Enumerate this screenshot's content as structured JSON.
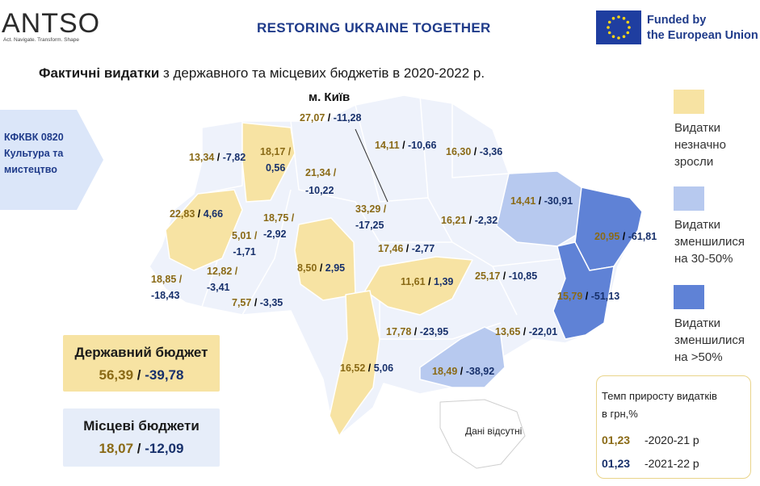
{
  "header": {
    "logo_text": "ANTSO",
    "logo_tagline": "Act. Navigate. Transform. Shape",
    "title": "RESTORING UKRAINE TOGETHER",
    "eu_line1": "Funded by",
    "eu_line2": "the European Union"
  },
  "title": {
    "bold": "Фактичні видатки",
    "rest": " з державного та місцевих бюджетів в 2020-2022 р."
  },
  "kfk": {
    "line1": "КФКВК 0820",
    "line2": "Культура та",
    "line3": "мистецтво"
  },
  "kyiv_label": "м. Київ",
  "colors": {
    "increase": "#f7e3a3",
    "decrease_30_50": "#b7c9ef",
    "decrease_50": "#5f82d6",
    "no_data": "#ffffff",
    "other": "#eef2fb",
    "text_2020_21": "#8a6a16",
    "text_2021_22": "#17306b"
  },
  "legend": [
    {
      "key": "increase",
      "lines": [
        "Видатки",
        "незначно",
        "зросли"
      ]
    },
    {
      "key": "decrease_30_50",
      "lines": [
        "Видатки",
        "зменшилися",
        "на 30-50%"
      ]
    },
    {
      "key": "decrease_50",
      "lines": [
        "Видатки",
        "зменшилися",
        "на >50%"
      ]
    }
  ],
  "state_budget": {
    "title": "Державний бюджет",
    "v2021": "56,39",
    "v2122": "-39,78"
  },
  "local_budget": {
    "title": "Місцеві бюджети",
    "v2021": "18,07",
    "v2122": "-12,09"
  },
  "rate_box": {
    "title_l1": "Темп приросту видатків",
    "title_l2": "в грн,%",
    "sample": "01,23",
    "row1": "-2020-21 р",
    "row2": "-2021-22 р"
  },
  "no_data_label": "Дані відсутні",
  "regions": [
    {
      "id": "volyn",
      "a": "13,34",
      "b": "-7,82",
      "cat": "other"
    },
    {
      "id": "rivne",
      "a": "18,17",
      "b": "0,56",
      "cat": "increase"
    },
    {
      "id": "zhytomyr",
      "a": "21,34",
      "b": "-10,22",
      "cat": "other"
    },
    {
      "id": "kyiv_city",
      "a": "27,07",
      "b": "-11,28",
      "cat": "other"
    },
    {
      "id": "kyiv_obl",
      "a": "33,29",
      "b": "-17,25",
      "cat": "other"
    },
    {
      "id": "chernihiv",
      "a": "14,11",
      "b": "-10,66",
      "cat": "other"
    },
    {
      "id": "sumy",
      "a": "16,30",
      "b": "-3,36",
      "cat": "other"
    },
    {
      "id": "kharkiv",
      "a": "14,41",
      "b": "-30,91",
      "cat": "decrease_30_50"
    },
    {
      "id": "luhansk",
      "a": "20,95",
      "b": "-61,81",
      "cat": "decrease_50"
    },
    {
      "id": "lviv",
      "a": "22,83",
      "b": "4,66",
      "cat": "increase"
    },
    {
      "id": "ternopil",
      "a": "18,75",
      "b": "-2,92",
      "cat": "other"
    },
    {
      "id": "khmelnytskyi",
      "a": "5,01",
      "b": "-1,71",
      "cat": "other"
    },
    {
      "id": "vinnytsia",
      "a": "8,50",
      "b": "2,95",
      "cat": "increase"
    },
    {
      "id": "cherkasy",
      "a": "17,46",
      "b": "-2,77",
      "cat": "other"
    },
    {
      "id": "poltava",
      "a": "16,21",
      "b": "-2,32",
      "cat": "other"
    },
    {
      "id": "zakarpattia",
      "a": "18,85",
      "b": "-18,43",
      "cat": "other"
    },
    {
      "id": "ivano_frankivsk",
      "a": "12,82",
      "b": "-3,41",
      "cat": "other"
    },
    {
      "id": "chernivtsi",
      "a": "7,57",
      "b": "-3,35",
      "cat": "other"
    },
    {
      "id": "kirovohrad",
      "a": "11,61",
      "b": "1,39",
      "cat": "increase"
    },
    {
      "id": "dnipro",
      "a": "25,17",
      "b": "-10,85",
      "cat": "other"
    },
    {
      "id": "donetsk",
      "a": "15,79",
      "b": "-51,13",
      "cat": "decrease_50"
    },
    {
      "id": "mykolaiv",
      "a": "17,78",
      "b": "-23,95",
      "cat": "other"
    },
    {
      "id": "zaporizhzhia",
      "a": "13,65",
      "b": "-22,01",
      "cat": "other"
    },
    {
      "id": "odesa",
      "a": "16,52",
      "b": "5,06",
      "cat": "increase"
    },
    {
      "id": "kherson",
      "a": "18,49",
      "b": "-38,92",
      "cat": "decrease_30_50"
    }
  ]
}
